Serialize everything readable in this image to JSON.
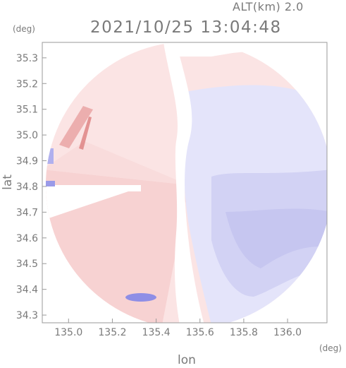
{
  "header": {
    "altitude_label": "ALT(km) 2.0",
    "timestamp": "2021/10/25 13:04:48"
  },
  "axes": {
    "x_label": "lon",
    "y_label": "lat",
    "x_unit": "(deg)",
    "y_unit": "(deg)",
    "x_range": [
      134.88,
      136.18
    ],
    "y_range": [
      34.27,
      35.36
    ],
    "x_ticks": [
      "135.0",
      "135.2",
      "135.4",
      "135.6",
      "135.8",
      "136.0"
    ],
    "y_ticks": [
      "34.3",
      "34.4",
      "34.5",
      "34.6",
      "34.7",
      "34.8",
      "34.9",
      "35.0",
      "35.1",
      "35.2",
      "35.3"
    ]
  },
  "map": {
    "radar_center": [
      135.53,
      34.81
    ],
    "colors": {
      "approaching_strong": "#8e8ee6",
      "approaching": "#c7c7f2",
      "approaching_weak": "#e6e6fb",
      "neutral": "#ffffff",
      "receding_weak": "#fbe6e6",
      "receding": "#f6caca",
      "receding_strong": "#e48c8c",
      "frame": "#9a9a9a"
    }
  }
}
